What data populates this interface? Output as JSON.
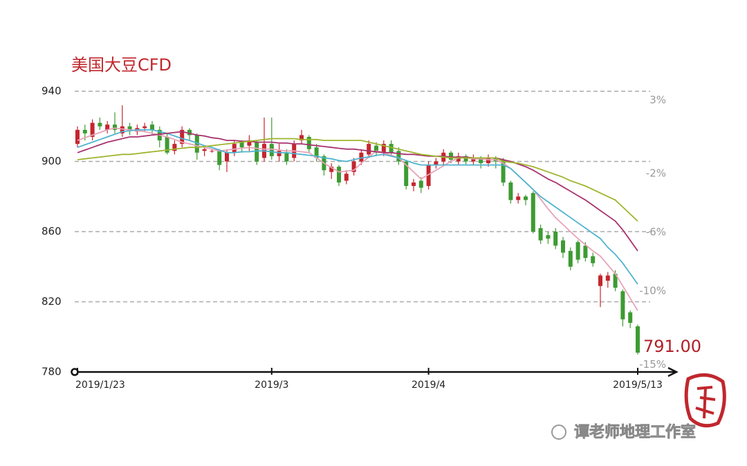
{
  "chart_data": {
    "type": "candlestick",
    "title": "美国大豆CFD",
    "categories": [
      "2019/1/23",
      null,
      null,
      null,
      null,
      null,
      null,
      null,
      null,
      null,
      null,
      null,
      null,
      null,
      null,
      null,
      null,
      null,
      null,
      null,
      null,
      null,
      null,
      null,
      null,
      null,
      "2019/3",
      null,
      null,
      null,
      null,
      null,
      null,
      null,
      null,
      null,
      null,
      null,
      null,
      null,
      null,
      null,
      null,
      null,
      null,
      null,
      null,
      "2019/4",
      null,
      null,
      null,
      null,
      null,
      null,
      null,
      null,
      null,
      null,
      null,
      null,
      null,
      null,
      null,
      null,
      null,
      null,
      null,
      null,
      null,
      null,
      null,
      null,
      null,
      null,
      null,
      "2019/5/13"
    ],
    "open": [
      910,
      918,
      914,
      922,
      918,
      921,
      916,
      920,
      917,
      919,
      921,
      918,
      914,
      906,
      910,
      918,
      915,
      906,
      906,
      906,
      900,
      905,
      911,
      909,
      911,
      902,
      910,
      903,
      905,
      902,
      912,
      914,
      908,
      903,
      894,
      897,
      889,
      894,
      900,
      904,
      909,
      905,
      910,
      906,
      900,
      886,
      889,
      886,
      898,
      900,
      905,
      900,
      903,
      900,
      902,
      899,
      902,
      901,
      888,
      878,
      880,
      882,
      862,
      858,
      860,
      855,
      849,
      854,
      852,
      846,
      829,
      832,
      836,
      826,
      814,
      806
    ],
    "high": [
      920,
      921,
      924,
      925,
      923,
      928,
      932,
      922,
      921,
      922,
      923,
      920,
      916,
      912,
      920,
      919,
      916,
      909,
      907,
      907,
      907,
      912,
      912,
      915,
      912,
      925,
      925,
      910,
      907,
      912,
      918,
      915,
      910,
      904,
      899,
      898,
      895,
      902,
      907,
      912,
      911,
      912,
      912,
      908,
      901,
      890,
      891,
      900,
      902,
      907,
      906,
      905,
      904,
      904,
      903,
      904,
      903,
      902,
      889,
      882,
      881,
      883,
      864,
      860,
      862,
      857,
      851,
      855,
      854,
      848,
      836,
      837,
      838,
      827,
      815,
      807
    ],
    "low": [
      908,
      912,
      912,
      918,
      916,
      916,
      914,
      915,
      915,
      917,
      915,
      908,
      904,
      904,
      908,
      912,
      901,
      903,
      905,
      895,
      894,
      903,
      905,
      906,
      898,
      900,
      901,
      900,
      898,
      900,
      910,
      905,
      900,
      892,
      890,
      886,
      887,
      892,
      898,
      902,
      903,
      903,
      903,
      898,
      884,
      883,
      882,
      884,
      896,
      898,
      899,
      898,
      898,
      898,
      896,
      897,
      896,
      886,
      876,
      876,
      875,
      859,
      853,
      853,
      850,
      845,
      838,
      842,
      843,
      840,
      817,
      828,
      826,
      806,
      805,
      790
    ],
    "close": [
      918,
      916,
      922,
      920,
      921,
      918,
      920,
      918,
      919,
      920,
      918,
      912,
      905,
      910,
      918,
      915,
      905,
      907,
      906,
      898,
      905,
      910,
      908,
      912,
      900,
      910,
      903,
      906,
      900,
      910,
      915,
      907,
      902,
      895,
      897,
      888,
      893,
      900,
      905,
      910,
      905,
      910,
      905,
      900,
      886,
      888,
      885,
      898,
      900,
      905,
      901,
      903,
      900,
      902,
      899,
      902,
      900,
      888,
      878,
      880,
      878,
      860,
      855,
      856,
      852,
      848,
      840,
      844,
      845,
      842,
      835,
      835,
      828,
      810,
      808,
      791
    ],
    "up_color": "#c4262e",
    "down_color": "#3d9b32",
    "series": [
      {
        "color": "#e8a3b8",
        "values": [
          912,
          913.5,
          915,
          916.5,
          918,
          919,
          918.5,
          918,
          917.5,
          917,
          916,
          915,
          914,
          912.5,
          911,
          910,
          909,
          908,
          907,
          906,
          906.5,
          907,
          907.5,
          908,
          907.5,
          907,
          907,
          906.5,
          906,
          906,
          905.5,
          905,
          902,
          899,
          896.5,
          894,
          894.5,
          895,
          899,
          902.5,
          906,
          905,
          903.5,
          902,
          898,
          894,
          890,
          892.5,
          895,
          897.5,
          900,
          902,
          902,
          901.5,
          901.5,
          901,
          901,
          899,
          896,
          892,
          888,
          884,
          878.5,
          873,
          868,
          864,
          860,
          856,
          852.5,
          849,
          846,
          841,
          836,
          829,
          822,
          815
        ]
      },
      {
        "color": "#4fb3cf",
        "values": [
          908,
          909.5,
          911,
          912.5,
          914,
          915.5,
          917,
          917.5,
          918,
          918,
          918,
          917,
          916,
          914.5,
          913,
          912,
          910.5,
          909,
          908,
          906.5,
          905,
          905,
          905.5,
          905.5,
          906,
          906,
          905.5,
          905,
          905,
          904.5,
          904,
          903.5,
          903,
          902,
          901.5,
          900.5,
          900,
          901,
          902,
          902.5,
          903.5,
          904,
          903,
          902,
          900.5,
          899,
          898,
          898,
          898,
          898,
          898,
          898,
          898,
          898,
          898,
          898,
          898,
          898,
          896,
          892,
          888,
          884,
          880,
          877,
          874,
          871,
          868,
          865,
          862,
          859,
          856,
          851,
          847,
          842,
          836,
          830
        ]
      },
      {
        "color": "#a8326e",
        "values": [
          905,
          906.5,
          908,
          909.5,
          911,
          912,
          913,
          914,
          914,
          914.5,
          915,
          915.5,
          916,
          916.5,
          917,
          916,
          915,
          914.5,
          913.5,
          913,
          912,
          912,
          911.5,
          911.5,
          911,
          911,
          911,
          910.5,
          910.5,
          910,
          910,
          909.5,
          909,
          908.5,
          908,
          907.5,
          907,
          907,
          906.5,
          906,
          905.5,
          905,
          905,
          904.5,
          904,
          904,
          903.5,
          903,
          903,
          903,
          902.5,
          902.5,
          902.5,
          902,
          902,
          902,
          902,
          901,
          900,
          898.5,
          897,
          895,
          892.5,
          890,
          888,
          885.5,
          883,
          880.5,
          878,
          875,
          872,
          869,
          866,
          861,
          855,
          849
        ]
      },
      {
        "color": "#9fb52e",
        "values": [
          901,
          901.5,
          902,
          902.5,
          903,
          903.5,
          904,
          904,
          904.5,
          905,
          905.5,
          906,
          906.5,
          907,
          907.5,
          908,
          908,
          908.5,
          909,
          909.5,
          910,
          910.5,
          911,
          911.5,
          912,
          912.5,
          913,
          913,
          913,
          913,
          912.5,
          912.5,
          912.5,
          912,
          912,
          912,
          912,
          912,
          912,
          911,
          910,
          909,
          908,
          907,
          906,
          905,
          904,
          903.5,
          903,
          902.5,
          902,
          902,
          902,
          902,
          902,
          902,
          902,
          900,
          899.5,
          899,
          898,
          897,
          895.5,
          894,
          892.5,
          891,
          889,
          887.5,
          886,
          884,
          882,
          880,
          878,
          874,
          870,
          866
        ]
      }
    ],
    "ylim": [
      780,
      940
    ],
    "yticks": [
      780,
      820,
      860,
      900,
      940
    ],
    "y2lim": [
      -15.5,
      3.6
    ],
    "y2ticks": [
      {
        "value": 3,
        "label": "3%"
      },
      {
        "value": -2,
        "label": "-2%"
      },
      {
        "value": -6,
        "label": "-6%"
      },
      {
        "value": -10,
        "label": "-10%"
      },
      {
        "value": -15,
        "label": "-15%"
      }
    ],
    "last_label": "791.00",
    "grid": true
  },
  "watermark": "谭老师地理工作室"
}
